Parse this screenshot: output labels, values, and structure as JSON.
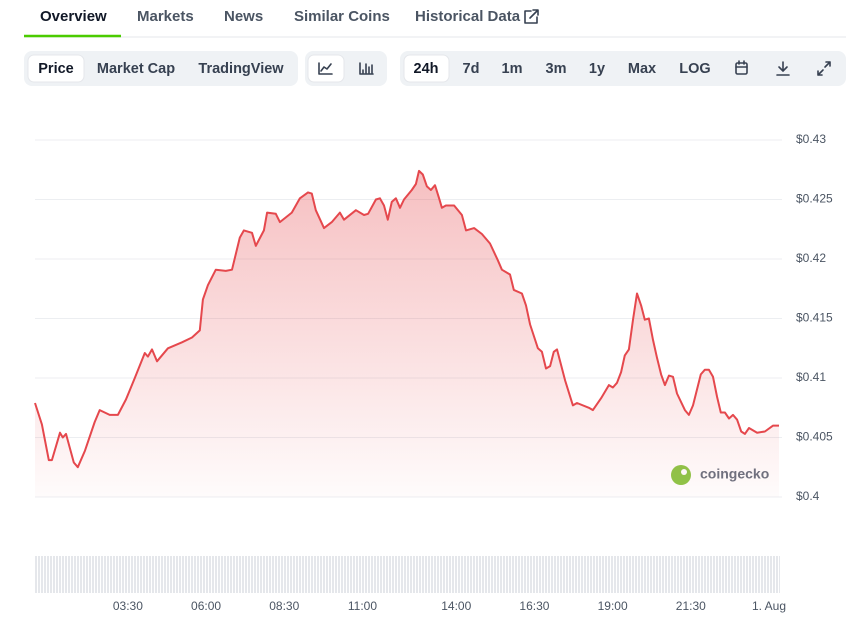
{
  "tabs": [
    "Overview",
    "Markets",
    "News",
    "Similar Coins",
    "Historical Data"
  ],
  "toolbar": {
    "chart_types": [
      "Price",
      "Market Cap",
      "TradingView"
    ],
    "ranges": [
      "24h",
      "7d",
      "1m",
      "3m",
      "1y",
      "Max",
      "LOG"
    ]
  },
  "watermark": "coingecko",
  "chart_data": {
    "type": "line",
    "color": "#e5484d",
    "grid": true,
    "x": [
      0.53,
      0.75,
      0.97,
      1.07,
      1.33,
      1.42,
      1.52,
      1.77,
      1.9,
      2.13,
      2.44,
      2.6,
      2.92,
      3.18,
      3.44,
      3.72,
      4.04,
      4.14,
      4.27,
      4.43,
      4.78,
      5.23,
      5.55,
      5.8,
      5.9,
      6.06,
      6.31,
      6.63,
      6.83,
      7.08,
      7.21,
      7.47,
      7.59,
      7.85,
      7.95,
      8.23,
      8.36,
      8.74,
      9.0,
      9.26,
      9.38,
      9.51,
      9.77,
      10.02,
      10.28,
      10.41,
      10.79,
      11.05,
      11.18,
      11.43,
      11.56,
      11.69,
      11.81,
      11.94,
      12.07,
      12.2,
      12.33,
      12.58,
      12.71,
      12.81,
      12.93,
      13.06,
      13.19,
      13.32,
      13.45,
      13.54,
      13.67,
      13.93,
      14.18,
      14.31,
      14.57,
      14.82,
      15.08,
      15.33,
      15.46,
      15.72,
      15.84,
      16.1,
      16.23,
      16.36,
      16.61,
      16.74,
      16.87,
      17.0,
      17.12,
      17.22,
      17.48,
      17.73,
      17.86,
      18.24,
      18.37,
      18.63,
      18.88,
      19.01,
      19.14,
      19.27,
      19.39,
      19.52,
      19.65,
      19.78,
      19.91,
      20.03,
      20.16,
      20.29,
      20.42,
      20.55,
      20.67,
      20.8,
      20.93,
      21.06,
      21.31,
      21.44,
      21.57,
      21.82,
      21.95,
      22.08,
      22.21,
      22.34,
      22.46,
      22.59,
      22.72,
      22.85,
      22.98,
      23.11,
      23.23,
      23.36,
      23.62,
      23.87,
      24.13,
      24.32
    ],
    "values": [
      0.4079,
      0.4061,
      0.4031,
      0.4031,
      0.4054,
      0.405,
      0.4053,
      0.4029,
      0.4025,
      0.4039,
      0.4063,
      0.4073,
      0.4069,
      0.4069,
      0.4082,
      0.41,
      0.4121,
      0.4118,
      0.4124,
      0.4114,
      0.4125,
      0.413,
      0.4134,
      0.414,
      0.4166,
      0.4178,
      0.4191,
      0.419,
      0.4191,
      0.4218,
      0.4224,
      0.4222,
      0.4211,
      0.4224,
      0.4239,
      0.4238,
      0.4231,
      0.4239,
      0.4251,
      0.4256,
      0.4255,
      0.4241,
      0.4226,
      0.4231,
      0.4239,
      0.4233,
      0.4241,
      0.4237,
      0.4238,
      0.425,
      0.4251,
      0.4245,
      0.4233,
      0.4248,
      0.4251,
      0.4243,
      0.425,
      0.4258,
      0.4263,
      0.4274,
      0.4271,
      0.4261,
      0.4258,
      0.4262,
      0.4251,
      0.4243,
      0.4245,
      0.4245,
      0.4237,
      0.4224,
      0.4226,
      0.4221,
      0.4213,
      0.4199,
      0.4191,
      0.4187,
      0.4174,
      0.4171,
      0.4161,
      0.4145,
      0.4125,
      0.4122,
      0.4108,
      0.411,
      0.4122,
      0.4124,
      0.4098,
      0.4077,
      0.4079,
      0.4075,
      0.4073,
      0.4083,
      0.4094,
      0.4092,
      0.4096,
      0.4105,
      0.4119,
      0.4124,
      0.4149,
      0.4171,
      0.4161,
      0.4149,
      0.415,
      0.4132,
      0.4117,
      0.4103,
      0.4094,
      0.4102,
      0.4101,
      0.4087,
      0.4073,
      0.4069,
      0.4077,
      0.4103,
      0.4107,
      0.4107,
      0.4101,
      0.4084,
      0.4071,
      0.4071,
      0.4066,
      0.4069,
      0.4065,
      0.4055,
      0.4053,
      0.4058,
      0.4054,
      0.4055,
      0.406,
      0.406
    ],
    "xlim": [
      0.53,
      24.32
    ],
    "xticks": [
      {
        "value": 3.5,
        "label": "03:30"
      },
      {
        "value": 6,
        "label": "06:00"
      },
      {
        "value": 8.5,
        "label": "08:30"
      },
      {
        "value": 11,
        "label": "11:00"
      },
      {
        "value": 14,
        "label": "14:00"
      },
      {
        "value": 16.5,
        "label": "16:30"
      },
      {
        "value": 19,
        "label": "19:00"
      },
      {
        "value": 21.5,
        "label": "21:30"
      },
      {
        "value": 24,
        "label": "1. Aug"
      }
    ],
    "ylim": [
      0.4,
      0.43
    ],
    "yticks": [
      {
        "value": 0.4,
        "label": "$0.4"
      },
      {
        "value": 0.405,
        "label": "$0.405"
      },
      {
        "value": 0.41,
        "label": "$0.41"
      },
      {
        "value": 0.415,
        "label": "$0.415"
      },
      {
        "value": 0.42,
        "label": "$0.42"
      },
      {
        "value": 0.425,
        "label": "$0.425"
      },
      {
        "value": 0.43,
        "label": "$0.43"
      }
    ]
  }
}
